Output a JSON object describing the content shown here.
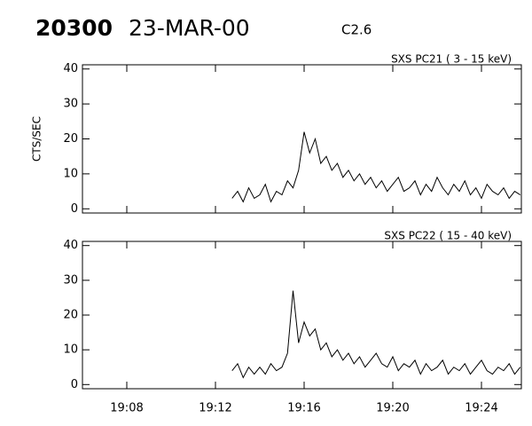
{
  "header": {
    "id": "20300",
    "date": "23-MAR-00",
    "class": "C2.6"
  },
  "chart_data": {
    "type": "line",
    "x": [
      "19:12:45",
      "19:13:00",
      "19:13:15",
      "19:13:30",
      "19:13:45",
      "19:14:00",
      "19:14:15",
      "19:14:30",
      "19:14:45",
      "19:15:00",
      "19:15:15",
      "19:15:30",
      "19:15:45",
      "19:16:00",
      "19:16:15",
      "19:16:30",
      "19:16:45",
      "19:17:00",
      "19:17:15",
      "19:17:30",
      "19:17:45",
      "19:18:00",
      "19:18:15",
      "19:18:30",
      "19:18:45",
      "19:19:00",
      "19:19:15",
      "19:19:30",
      "19:19:45",
      "19:20:00",
      "19:20:15",
      "19:20:30",
      "19:20:45",
      "19:21:00",
      "19:21:15",
      "19:21:30",
      "19:21:45",
      "19:22:00",
      "19:22:15",
      "19:22:30",
      "19:22:45",
      "19:23:00",
      "19:23:15",
      "19:23:30",
      "19:23:45",
      "19:24:00",
      "19:24:15",
      "19:24:30",
      "19:24:45",
      "19:25:00",
      "19:25:15",
      "19:25:30",
      "19:25:45"
    ],
    "xlim": [
      "19:06:00",
      "19:25:48"
    ],
    "xticks": [
      "19:08",
      "19:12",
      "19:16",
      "19:20",
      "19:24"
    ],
    "panels": [
      {
        "title": "SXS PC21  (  3 - 15 keV)",
        "ylabel": "CTS/SEC",
        "ylim": [
          -1.2,
          41.2
        ],
        "yticks": [
          0,
          10,
          20,
          30,
          40
        ],
        "series": [
          {
            "color": "#000000",
            "values": [
              3,
              5,
              2,
              6,
              3,
              4,
              7,
              2,
              5,
              4,
              8,
              6,
              11,
              22,
              16,
              20,
              13,
              15,
              11,
              13,
              9,
              11,
              8,
              10,
              7,
              9,
              6,
              8,
              5,
              7,
              9,
              5,
              6,
              8,
              4,
              7,
              5,
              9,
              6,
              4,
              7,
              5,
              8,
              4,
              6,
              3,
              7,
              5,
              4,
              6,
              3,
              5,
              4
            ]
          }
        ]
      },
      {
        "title": "SXS PC22  ( 15 - 40 keV)",
        "ylim": [
          -1.2,
          41.2
        ],
        "yticks": [
          0,
          10,
          20,
          30,
          40
        ],
        "series": [
          {
            "color": "#000000",
            "values": [
              4,
              6,
              2,
              5,
              3,
              5,
              3,
              6,
              4,
              5,
              9,
              27,
              12,
              18,
              14,
              16,
              10,
              12,
              8,
              10,
              7,
              9,
              6,
              8,
              5,
              7,
              9,
              6,
              5,
              8,
              4,
              6,
              5,
              7,
              3,
              6,
              4,
              5,
              7,
              3,
              5,
              4,
              6,
              3,
              5,
              7,
              4,
              3,
              5,
              4,
              6,
              3,
              5
            ]
          }
        ]
      }
    ]
  }
}
